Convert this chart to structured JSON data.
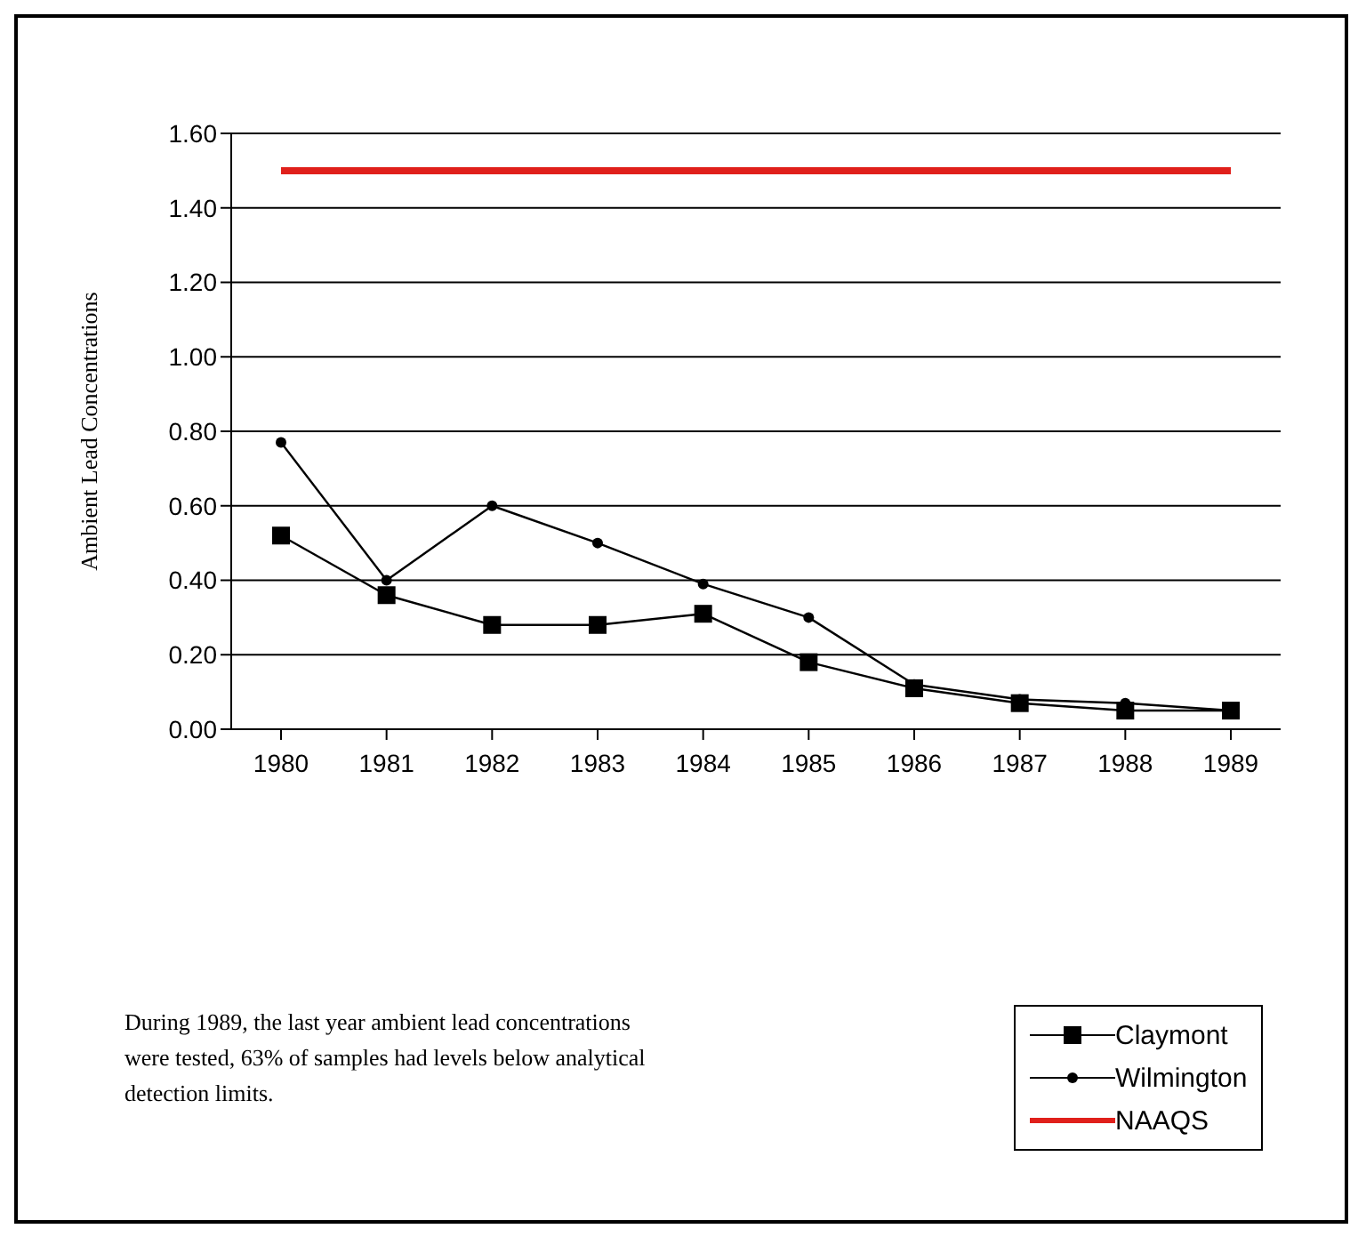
{
  "chart_data": {
    "type": "line",
    "ylabel": "Ambient Lead Concentrations",
    "categories": [
      "1980",
      "1981",
      "1982",
      "1983",
      "1984",
      "1985",
      "1986",
      "1987",
      "1988",
      "1989"
    ],
    "series": [
      {
        "name": "Claymont",
        "color": "#000000",
        "marker": "square",
        "values": [
          0.52,
          0.36,
          0.28,
          0.28,
          0.31,
          0.18,
          0.11,
          0.07,
          0.05,
          0.05
        ]
      },
      {
        "name": "Wilmington",
        "color": "#000000",
        "marker": "circle",
        "values": [
          0.77,
          0.4,
          0.6,
          0.5,
          0.39,
          0.3,
          0.12,
          0.08,
          0.07,
          0.05
        ]
      },
      {
        "name": "NAAQS",
        "color": "#e0201b",
        "marker": "none",
        "values": [
          1.5,
          1.5,
          1.5,
          1.5,
          1.5,
          1.5,
          1.5,
          1.5,
          1.5,
          1.5
        ]
      }
    ],
    "ylim": [
      0,
      1.6
    ],
    "yticks": [
      {
        "value": 0,
        "label": "0.00"
      },
      {
        "value": 0.2,
        "label": "0.20"
      },
      {
        "value": 0.4,
        "label": "0.40"
      },
      {
        "value": 0.6,
        "label": "0.60"
      },
      {
        "value": 0.8,
        "label": "0.80"
      },
      {
        "value": 1.0,
        "label": "1.00"
      },
      {
        "value": 1.2,
        "label": "1.20"
      },
      {
        "value": 1.4,
        "label": "1.40"
      },
      {
        "value": 1.6,
        "label": "1.60"
      }
    ],
    "grid": "y",
    "legend": "bottom right",
    "annotations": [
      "During 1989, the last year ambient lead concentrations were tested, 63% of samples had levels below analytical detection limits."
    ]
  }
}
